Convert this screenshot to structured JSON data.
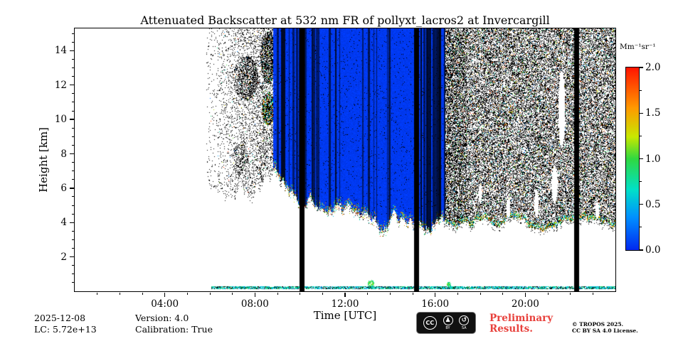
{
  "chart_data": {
    "type": "heatmap",
    "title": "Attenuated Backscatter at 532 nm FR of pollyxt_lacros2 at Invercargill",
    "xlabel": "Time [UTC]",
    "ylabel": "Height [km]",
    "x_ticks": [
      {
        "hour": 4,
        "label": "04:00"
      },
      {
        "hour": 8,
        "label": "08:00"
      },
      {
        "hour": 12,
        "label": "12:00"
      },
      {
        "hour": 16,
        "label": "16:00"
      },
      {
        "hour": 20,
        "label": "20:00"
      }
    ],
    "x_minor_step_hours": 1,
    "xlim_hours": [
      0,
      24
    ],
    "y_ticks": [
      2,
      4,
      6,
      8,
      10,
      12,
      14
    ],
    "y_minor_step_km": 0.5,
    "ylim_km": [
      0,
      15.3
    ],
    "colorbar": {
      "label": "Mm⁻¹sr⁻¹",
      "ticks": [
        "0.0",
        "0.5",
        "1.0",
        "1.5",
        "2.0"
      ],
      "tick_values": [
        0,
        0.5,
        1,
        1.5,
        2
      ],
      "range": [
        0,
        2
      ],
      "minor_step": 0.25,
      "colormap_stops": [
        [
          0.0,
          "#0028f0"
        ],
        [
          0.18,
          "#0090ff"
        ],
        [
          0.33,
          "#00e0c8"
        ],
        [
          0.5,
          "#30d840"
        ],
        [
          0.62,
          "#c8e800"
        ],
        [
          0.78,
          "#ff9800"
        ],
        [
          1.0,
          "#ff1400"
        ]
      ]
    },
    "features": {
      "summary": "Clear sky until ~06:00 UTC; background noise speckle above ~6.5 km from 06:00-08:45; optically thick cloud layer (low backscatter, blue) from ~08:50 to ~16:25 with base descending from ~7 km to ~3.8 km; dense noise above ~3.9 km after 16:30; three full-height black data-gap bars near 10:00, 15:10 and 22:15; thin surface aerosol layer near 0.2 km from ~06:00 onward.",
      "noise_start_hour": 5.85,
      "left_noise_bottom_profile": [
        [
          5.85,
          7.4
        ],
        [
          6.3,
          6.7
        ],
        [
          7.0,
          6.3
        ],
        [
          7.8,
          6.5
        ],
        [
          8.8,
          6.9
        ]
      ],
      "left_noise_density": [
        0.03,
        0.28
      ],
      "speckle_colored_fraction_left": 0.05,
      "cloud": {
        "t_start": 8.8,
        "t_end": 16.45,
        "base_profile": [
          [
            8.8,
            7.2
          ],
          [
            9.2,
            6.2
          ],
          [
            9.6,
            5.6
          ],
          [
            10.0,
            5.3
          ],
          [
            11.0,
            4.95
          ],
          [
            12.0,
            4.8
          ],
          [
            13.0,
            4.5
          ],
          [
            13.6,
            3.75
          ],
          [
            14.2,
            4.05
          ],
          [
            15.0,
            3.95
          ],
          [
            16.0,
            3.9
          ],
          [
            16.45,
            3.8
          ]
        ],
        "streak_prob_default": 0.16,
        "streak_zones": [
          [
            8.8,
            10.6,
            0.5
          ],
          [
            15.2,
            16.45,
            0.68
          ]
        ],
        "value_color_u": 0.03
      },
      "right_noise": {
        "t_start": 16.45,
        "t_end": 24,
        "bottom_profile": [
          [
            16.45,
            3.8
          ],
          [
            17.5,
            3.95
          ],
          [
            18.5,
            4.0
          ],
          [
            19.5,
            4.1
          ],
          [
            20.5,
            3.9
          ],
          [
            21.5,
            3.95
          ],
          [
            22.5,
            3.85
          ],
          [
            23.5,
            3.9
          ],
          [
            24,
            3.8
          ]
        ],
        "density": 0.45,
        "dense_until_hour": 17.4,
        "dense_density": 0.58,
        "colored_fraction": 0.1
      },
      "gap_bars_hours": [
        [
          9.98,
          10.2
        ],
        [
          15.05,
          15.28
        ],
        [
          22.16,
          22.4
        ]
      ],
      "surface_layer": {
        "t_start": 6.05,
        "t_end": 24,
        "h_bottom": 0.12,
        "h_top": 0.3,
        "density": 0.85
      },
      "surface_blobs": [
        [
          13.15,
          0.45,
          0.15,
          0.2
        ],
        [
          16.62,
          0.4,
          0.1,
          0.15
        ]
      ],
      "white_gaps": [
        [
          21.62,
          10.6,
          0.15,
          2.2
        ],
        [
          21.3,
          6.2,
          0.13,
          1.1
        ],
        [
          20.5,
          5.1,
          0.1,
          0.8
        ],
        [
          19.25,
          4.8,
          0.09,
          0.6
        ],
        [
          23.2,
          4.7,
          0.08,
          0.5
        ],
        [
          18.0,
          5.7,
          0.08,
          0.5
        ]
      ],
      "dense_patches": [
        [
          7.6,
          12.4,
          0.55,
          1.3,
          3.0,
          0.05
        ],
        [
          7.35,
          7.7,
          0.35,
          0.9,
          2.5,
          0.05
        ],
        [
          8.6,
          10.6,
          0.3,
          0.95,
          3.0,
          0.4
        ],
        [
          8.6,
          13.6,
          0.35,
          1.5,
          2.8,
          0.1
        ]
      ],
      "edge_fringe_km": 0.45,
      "colored_edge_fraction": 0.35
    }
  },
  "footer": {
    "date": "2025-12-08",
    "lc": "LC: 5.72e+13",
    "version": "Version: 4.0",
    "calibration": "Calibration: True",
    "preliminary_line1": "Preliminary",
    "preliminary_line2": "Results.",
    "copyright_line1": "© TROPOS 2025.",
    "copyright_line2": "CC BY SA 4.0 License.",
    "cc_badge": {
      "circle1": "CC",
      "person_icon": "♟",
      "sharealike_icon": "↺",
      "sub_by": "BY",
      "sub_sa": "SA"
    }
  },
  "colors": {
    "background": "#ffffff",
    "axis": "#000000",
    "gap_bar": "#000000",
    "preliminary": "#e8413c"
  }
}
